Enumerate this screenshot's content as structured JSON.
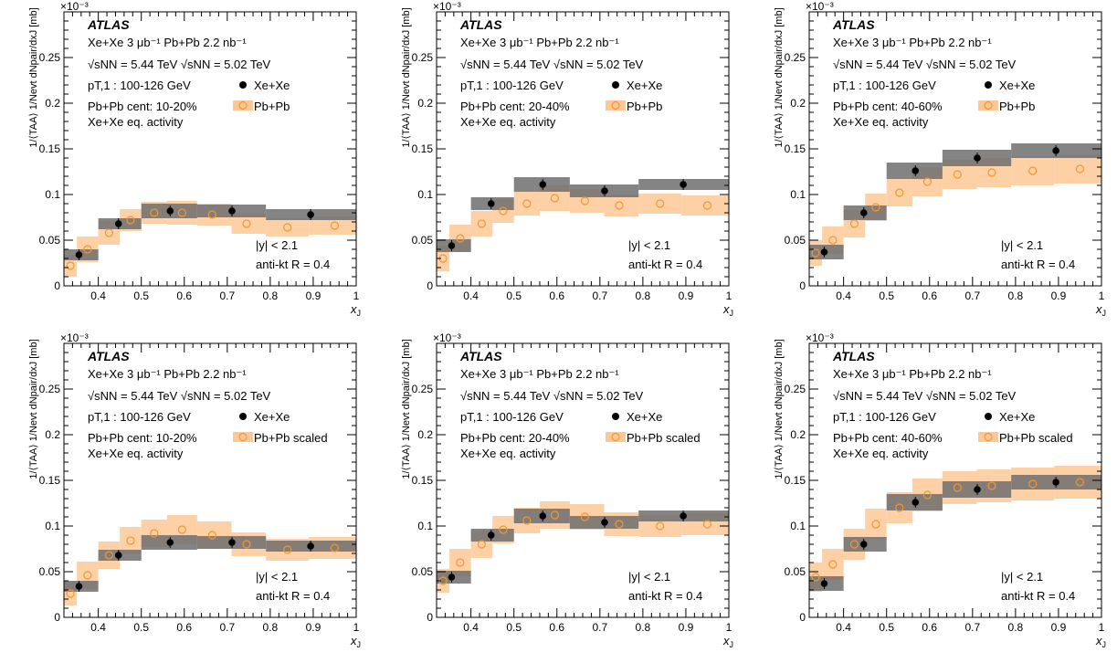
{
  "chart_data": [
    {
      "type": "scatter",
      "panel_label": "ATLAS",
      "info_lines": [
        "Xe+Xe 3 μb⁻¹   Pb+Pb 2.2 nb⁻¹",
        "√sNN = 5.44 TeV  √sNN = 5.02 TeV",
        "pT,1 : 100-126 GeV",
        "Pb+Pb cent: 10-20%",
        "Xe+Xe eq. activity"
      ],
      "cut_lines": [
        "|y| < 2.1",
        "anti-kt R = 0.4"
      ],
      "xlabel": "xJ",
      "ylabel": "1/⟨TAA⟩ 1/Nevt dNpair/dxJ [mb]",
      "exponent": "×10⁻³",
      "xlim": [
        0.32,
        1.0
      ],
      "ylim": [
        0,
        0.3
      ],
      "xticks": [
        "0.4",
        "0.5",
        "0.6",
        "0.7",
        "0.8",
        "0.9",
        "1"
      ],
      "yticks": [
        "0",
        "0.05",
        "0.1",
        "0.15",
        "0.2",
        "0.25"
      ],
      "series": [
        {
          "name": "Xe+Xe",
          "color": "#000000",
          "band_color": "#6e6e6e",
          "x": [
            0.355,
            0.447,
            0.567,
            0.711,
            0.894
          ],
          "y": [
            0.034,
            0.068,
            0.082,
            0.082,
            0.078
          ],
          "bins": [
            [
              0.32,
              0.4
            ],
            [
              0.4,
              0.5
            ],
            [
              0.5,
              0.63
            ],
            [
              0.63,
              0.79
            ],
            [
              0.79,
              1.0
            ]
          ],
          "sys": [
            0.006,
            0.006,
            0.008,
            0.007,
            0.006
          ]
        },
        {
          "name": "Pb+Pb",
          "color": "#f4962e",
          "band_color": "#fdc897",
          "x": [
            0.335,
            0.375,
            0.425,
            0.475,
            0.53,
            0.595,
            0.665,
            0.745,
            0.84,
            0.95
          ],
          "y": [
            0.022,
            0.04,
            0.058,
            0.072,
            0.08,
            0.08,
            0.078,
            0.068,
            0.064,
            0.066
          ],
          "bins": [
            [
              0.32,
              0.35
            ],
            [
              0.35,
              0.4
            ],
            [
              0.4,
              0.45
            ],
            [
              0.45,
              0.5
            ],
            [
              0.5,
              0.56
            ],
            [
              0.56,
              0.63
            ],
            [
              0.63,
              0.71
            ],
            [
              0.71,
              0.79
            ],
            [
              0.79,
              0.89
            ],
            [
              0.89,
              1.0
            ]
          ],
          "sys": [
            0.012,
            0.014,
            0.013,
            0.012,
            0.012,
            0.013,
            0.012,
            0.011,
            0.01,
            0.01
          ]
        }
      ]
    },
    {
      "type": "scatter",
      "panel_label": "ATLAS",
      "info_lines": [
        "Xe+Xe 3 μb⁻¹   Pb+Pb 2.2 nb⁻¹",
        "√sNN = 5.44 TeV  √sNN = 5.02 TeV",
        "pT,1 : 100-126 GeV",
        "Pb+Pb cent: 20-40%",
        "Xe+Xe eq. activity"
      ],
      "cut_lines": [
        "|y| < 2.1",
        "anti-kt R = 0.4"
      ],
      "xlabel": "xJ",
      "ylabel": "1/⟨TAA⟩ 1/Nevt dNpair/dxJ [mb]",
      "exponent": "×10⁻³",
      "xlim": [
        0.32,
        1.0
      ],
      "ylim": [
        0,
        0.3
      ],
      "xticks": [
        "0.4",
        "0.5",
        "0.6",
        "0.7",
        "0.8",
        "0.9",
        "1"
      ],
      "yticks": [
        "0",
        "0.05",
        "0.1",
        "0.15",
        "0.2",
        "0.25"
      ],
      "series": [
        {
          "name": "Xe+Xe",
          "color": "#000000",
          "band_color": "#6e6e6e",
          "x": [
            0.355,
            0.447,
            0.567,
            0.711,
            0.894
          ],
          "y": [
            0.044,
            0.09,
            0.111,
            0.104,
            0.111
          ],
          "bins": [
            [
              0.32,
              0.4
            ],
            [
              0.4,
              0.5
            ],
            [
              0.5,
              0.63
            ],
            [
              0.63,
              0.79
            ],
            [
              0.79,
              1.0
            ]
          ],
          "sys": [
            0.007,
            0.007,
            0.008,
            0.007,
            0.006
          ]
        },
        {
          "name": "Pb+Pb",
          "color": "#f4962e",
          "band_color": "#fdc897",
          "x": [
            0.335,
            0.375,
            0.425,
            0.475,
            0.53,
            0.595,
            0.665,
            0.745,
            0.84,
            0.95
          ],
          "y": [
            0.03,
            0.052,
            0.068,
            0.082,
            0.09,
            0.096,
            0.093,
            0.088,
            0.09,
            0.088
          ],
          "bins": [
            [
              0.32,
              0.35
            ],
            [
              0.35,
              0.4
            ],
            [
              0.4,
              0.45
            ],
            [
              0.45,
              0.5
            ],
            [
              0.5,
              0.56
            ],
            [
              0.56,
              0.63
            ],
            [
              0.63,
              0.71
            ],
            [
              0.71,
              0.79
            ],
            [
              0.79,
              0.89
            ],
            [
              0.89,
              1.0
            ]
          ],
          "sys": [
            0.014,
            0.015,
            0.014,
            0.013,
            0.013,
            0.014,
            0.013,
            0.012,
            0.011,
            0.011
          ]
        }
      ]
    },
    {
      "type": "scatter",
      "panel_label": "ATLAS",
      "info_lines": [
        "Xe+Xe 3 μb⁻¹   Pb+Pb 2.2 nb⁻¹",
        "√sNN = 5.44 TeV  √sNN = 5.02 TeV",
        "pT,1 : 100-126 GeV",
        "Pb+Pb cent: 40-60%",
        "Xe+Xe eq. activity"
      ],
      "cut_lines": [
        "|y| < 2.1",
        "anti-kt R = 0.4"
      ],
      "xlabel": "xJ",
      "ylabel": "1/⟨TAA⟩ 1/Nevt dNpair/dxJ [mb]",
      "exponent": "×10⁻³",
      "xlim": [
        0.32,
        1.0
      ],
      "ylim": [
        0,
        0.3
      ],
      "xticks": [
        "0.4",
        "0.5",
        "0.6",
        "0.7",
        "0.8",
        "0.9",
        "1"
      ],
      "yticks": [
        "0",
        "0.05",
        "0.1",
        "0.15",
        "0.2",
        "0.25"
      ],
      "series": [
        {
          "name": "Xe+Xe",
          "color": "#000000",
          "band_color": "#6e6e6e",
          "x": [
            0.355,
            0.447,
            0.567,
            0.711,
            0.894
          ],
          "y": [
            0.037,
            0.08,
            0.126,
            0.14,
            0.148
          ],
          "bins": [
            [
              0.32,
              0.4
            ],
            [
              0.4,
              0.5
            ],
            [
              0.5,
              0.63
            ],
            [
              0.63,
              0.79
            ],
            [
              0.79,
              1.0
            ]
          ],
          "sys": [
            0.008,
            0.008,
            0.009,
            0.009,
            0.008
          ]
        },
        {
          "name": "Pb+Pb",
          "color": "#f4962e",
          "band_color": "#fdc897",
          "x": [
            0.335,
            0.375,
            0.425,
            0.475,
            0.53,
            0.595,
            0.665,
            0.745,
            0.84,
            0.95
          ],
          "y": [
            0.036,
            0.05,
            0.068,
            0.086,
            0.102,
            0.114,
            0.122,
            0.124,
            0.126,
            0.128
          ],
          "bins": [
            [
              0.32,
              0.35
            ],
            [
              0.35,
              0.4
            ],
            [
              0.4,
              0.45
            ],
            [
              0.45,
              0.5
            ],
            [
              0.5,
              0.56
            ],
            [
              0.56,
              0.63
            ],
            [
              0.63,
              0.71
            ],
            [
              0.71,
              0.79
            ],
            [
              0.79,
              0.89
            ],
            [
              0.89,
              1.0
            ]
          ],
          "sys": [
            0.014,
            0.015,
            0.015,
            0.015,
            0.015,
            0.016,
            0.016,
            0.016,
            0.016,
            0.016
          ]
        }
      ]
    },
    {
      "type": "scatter",
      "panel_label": "ATLAS",
      "info_lines": [
        "Xe+Xe 3 μb⁻¹   Pb+Pb 2.2 nb⁻¹",
        "√sNN = 5.44 TeV  √sNN = 5.02 TeV",
        "pT,1 : 100-126 GeV",
        "Pb+Pb cent: 10-20%",
        "Xe+Xe eq. activity"
      ],
      "cut_lines": [
        "|y| < 2.1",
        "anti-kt R = 0.4"
      ],
      "xlabel": "xJ",
      "ylabel": "1/⟨TAA⟩ 1/Nevt dNpair/dxJ [mb]",
      "exponent": "×10⁻³",
      "xlim": [
        0.32,
        1.0
      ],
      "ylim": [
        0,
        0.3
      ],
      "xticks": [
        "0.4",
        "0.5",
        "0.6",
        "0.7",
        "0.8",
        "0.9",
        "1"
      ],
      "yticks": [
        "0",
        "0.05",
        "0.1",
        "0.15",
        "0.2",
        "0.25"
      ],
      "series": [
        {
          "name": "Xe+Xe",
          "color": "#000000",
          "band_color": "#6e6e6e",
          "x": [
            0.355,
            0.447,
            0.567,
            0.711,
            0.894
          ],
          "y": [
            0.034,
            0.068,
            0.082,
            0.082,
            0.078
          ],
          "bins": [
            [
              0.32,
              0.4
            ],
            [
              0.4,
              0.5
            ],
            [
              0.5,
              0.63
            ],
            [
              0.63,
              0.79
            ],
            [
              0.79,
              1.0
            ]
          ],
          "sys": [
            0.006,
            0.006,
            0.008,
            0.007,
            0.006
          ]
        },
        {
          "name": "Pb+Pb scaled",
          "color": "#f4962e",
          "band_color": "#fdc897",
          "x": [
            0.335,
            0.375,
            0.425,
            0.475,
            0.53,
            0.595,
            0.665,
            0.745,
            0.84,
            0.95
          ],
          "y": [
            0.026,
            0.046,
            0.068,
            0.084,
            0.092,
            0.096,
            0.09,
            0.08,
            0.074,
            0.076
          ],
          "bins": [
            [
              0.32,
              0.35
            ],
            [
              0.35,
              0.4
            ],
            [
              0.4,
              0.45
            ],
            [
              0.45,
              0.5
            ],
            [
              0.5,
              0.56
            ],
            [
              0.56,
              0.63
            ],
            [
              0.63,
              0.71
            ],
            [
              0.71,
              0.79
            ],
            [
              0.79,
              0.89
            ],
            [
              0.89,
              1.0
            ]
          ],
          "sys": [
            0.013,
            0.015,
            0.015,
            0.015,
            0.015,
            0.016,
            0.015,
            0.013,
            0.012,
            0.012
          ]
        }
      ]
    },
    {
      "type": "scatter",
      "panel_label": "ATLAS",
      "info_lines": [
        "Xe+Xe 3 μb⁻¹   Pb+Pb 2.2 nb⁻¹",
        "√sNN = 5.44 TeV  √sNN = 5.02 TeV",
        "pT,1 : 100-126 GeV",
        "Pb+Pb cent: 20-40%",
        "Xe+Xe eq. activity"
      ],
      "cut_lines": [
        "|y| < 2.1",
        "anti-kt R = 0.4"
      ],
      "xlabel": "xJ",
      "ylabel": "1/⟨TAA⟩ 1/Nevt dNpair/dxJ [mb]",
      "exponent": "×10⁻³",
      "xlim": [
        0.32,
        1.0
      ],
      "ylim": [
        0,
        0.3
      ],
      "xticks": [
        "0.4",
        "0.5",
        "0.6",
        "0.7",
        "0.8",
        "0.9",
        "1"
      ],
      "yticks": [
        "0",
        "0.05",
        "0.1",
        "0.15",
        "0.2",
        "0.25"
      ],
      "series": [
        {
          "name": "Xe+Xe",
          "color": "#000000",
          "band_color": "#6e6e6e",
          "x": [
            0.355,
            0.447,
            0.567,
            0.711,
            0.894
          ],
          "y": [
            0.044,
            0.09,
            0.111,
            0.104,
            0.111
          ],
          "bins": [
            [
              0.32,
              0.4
            ],
            [
              0.4,
              0.5
            ],
            [
              0.5,
              0.63
            ],
            [
              0.63,
              0.79
            ],
            [
              0.79,
              1.0
            ]
          ],
          "sys": [
            0.007,
            0.007,
            0.008,
            0.007,
            0.006
          ]
        },
        {
          "name": "Pb+Pb scaled",
          "color": "#f4962e",
          "band_color": "#fdc897",
          "x": [
            0.335,
            0.375,
            0.425,
            0.475,
            0.53,
            0.595,
            0.665,
            0.745,
            0.84,
            0.95
          ],
          "y": [
            0.04,
            0.06,
            0.08,
            0.096,
            0.106,
            0.112,
            0.11,
            0.102,
            0.1,
            0.102
          ],
          "bins": [
            [
              0.32,
              0.35
            ],
            [
              0.35,
              0.4
            ],
            [
              0.4,
              0.45
            ],
            [
              0.45,
              0.5
            ],
            [
              0.5,
              0.56
            ],
            [
              0.56,
              0.63
            ],
            [
              0.63,
              0.71
            ],
            [
              0.71,
              0.79
            ],
            [
              0.79,
              0.89
            ],
            [
              0.89,
              1.0
            ]
          ],
          "sys": [
            0.013,
            0.015,
            0.015,
            0.015,
            0.014,
            0.015,
            0.014,
            0.013,
            0.012,
            0.012
          ]
        }
      ]
    },
    {
      "type": "scatter",
      "panel_label": "ATLAS",
      "info_lines": [
        "Xe+Xe 3 μb⁻¹   Pb+Pb 2.2 nb⁻¹",
        "√sNN = 5.44 TeV  √sNN = 5.02 TeV",
        "pT,1 : 100-126 GeV",
        "Pb+Pb cent: 40-60%",
        "Xe+Xe eq. activity"
      ],
      "cut_lines": [
        "|y| < 2.1",
        "anti-kt R = 0.4"
      ],
      "xlabel": "xJ",
      "ylabel": "1/⟨TAA⟩ 1/Nevt dNpair/dxJ [mb]",
      "exponent": "×10⁻³",
      "xlim": [
        0.32,
        1.0
      ],
      "ylim": [
        0,
        0.3
      ],
      "xticks": [
        "0.4",
        "0.5",
        "0.6",
        "0.7",
        "0.8",
        "0.9",
        "1"
      ],
      "yticks": [
        "0",
        "0.05",
        "0.1",
        "0.15",
        "0.2",
        "0.25"
      ],
      "series": [
        {
          "name": "Xe+Xe",
          "color": "#000000",
          "band_color": "#6e6e6e",
          "x": [
            0.355,
            0.447,
            0.567,
            0.711,
            0.894
          ],
          "y": [
            0.037,
            0.08,
            0.126,
            0.14,
            0.148
          ],
          "bins": [
            [
              0.32,
              0.4
            ],
            [
              0.4,
              0.5
            ],
            [
              0.5,
              0.63
            ],
            [
              0.63,
              0.79
            ],
            [
              0.79,
              1.0
            ]
          ],
          "sys": [
            0.008,
            0.008,
            0.009,
            0.009,
            0.008
          ]
        },
        {
          "name": "Pb+Pb scaled",
          "color": "#f4962e",
          "band_color": "#fdc897",
          "x": [
            0.335,
            0.375,
            0.425,
            0.475,
            0.53,
            0.595,
            0.665,
            0.745,
            0.84,
            0.95
          ],
          "y": [
            0.044,
            0.058,
            0.08,
            0.102,
            0.12,
            0.134,
            0.142,
            0.144,
            0.146,
            0.148
          ],
          "bins": [
            [
              0.32,
              0.35
            ],
            [
              0.35,
              0.4
            ],
            [
              0.4,
              0.45
            ],
            [
              0.45,
              0.5
            ],
            [
              0.5,
              0.56
            ],
            [
              0.56,
              0.63
            ],
            [
              0.63,
              0.71
            ],
            [
              0.71,
              0.79
            ],
            [
              0.79,
              0.89
            ],
            [
              0.89,
              1.0
            ]
          ],
          "sys": [
            0.016,
            0.017,
            0.017,
            0.017,
            0.017,
            0.018,
            0.018,
            0.018,
            0.018,
            0.018
          ]
        }
      ]
    }
  ]
}
